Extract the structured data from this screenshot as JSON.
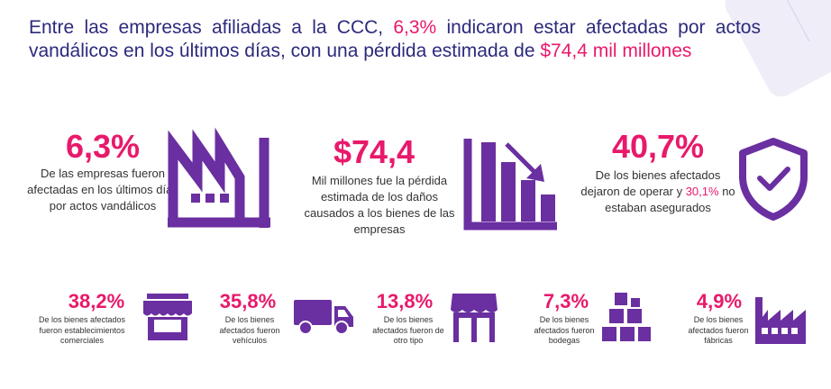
{
  "headline": {
    "part1": "Entre las empresas afiliadas a la CCC, ",
    "highlight1": "6,3%",
    "part2": " indicaron estar afectadas por actos vandálicos en los últimos días, con una pérdida estimada de ",
    "highlight2": "$74,4 mil millones"
  },
  "main_stats": [
    {
      "value": "6,3%",
      "description": "De las empresas fueron afectadas en los últimos días por actos vandálicos",
      "icon": "factory-icon"
    },
    {
      "value": "$74,4",
      "description": "Mil millones fue la pérdida estimada de los daños causados a los bienes de las empresas",
      "icon": "declining-chart-icon"
    },
    {
      "value": "40,7%",
      "description_before": "De los bienes afectados dejaron de operar y ",
      "description_highlight": "30,1%",
      "description_after": " no estaban asegurados",
      "icon": "shield-check-icon"
    }
  ],
  "small_stats": [
    {
      "value": "38,2%",
      "description": "De los bienes afectados fueron establecimientos comerciales",
      "icon": "storefront-icon"
    },
    {
      "value": "35,8%",
      "description": "De los bienes afectados fueron vehículos",
      "icon": "truck-icon"
    },
    {
      "value": "13,8%",
      "description": "De los bienes afectados fueron de otro tipo",
      "icon": "shop-icon"
    },
    {
      "value": "7,3%",
      "description": "De los bienes afectados fueron bodegas",
      "icon": "boxes-icon"
    },
    {
      "value": "4,9%",
      "description": "De los bienes afectados fueron fábricas",
      "icon": "small-factory-icon"
    }
  ],
  "colors": {
    "accent": "#e8196b",
    "title": "#2c2a7c",
    "icon": "#6a2fa0",
    "text": "#333333"
  }
}
